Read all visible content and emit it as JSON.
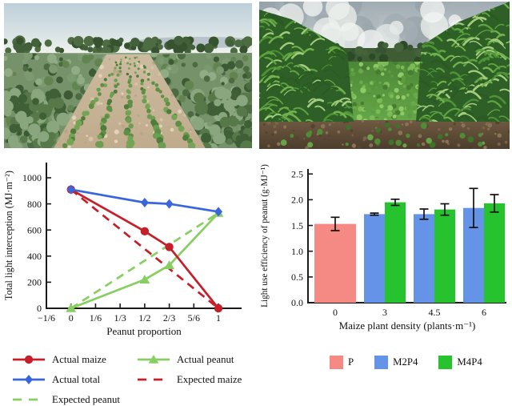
{
  "figure": {
    "kind": "composite-research-figure",
    "background": "#ffffff",
    "photos": {
      "left": {
        "name": "maize-peanut-field-early",
        "description": "young maize rows flanking peanut strips on sandy soil, tree line on horizon, hazy sky"
      },
      "right": {
        "name": "maize-peanut-field-late",
        "description": "tall maize walls on both sides of a dense peanut strip under a cloudy grey sky, dark soil foreground"
      }
    }
  },
  "chart_data": [
    {
      "type": "line",
      "title": "",
      "xlabel": "Peanut proportion",
      "ylabel": "Total light interception (MJ·m⁻²)",
      "xlim": [
        -0.1667,
        1.157
      ],
      "ylim": [
        0,
        1100
      ],
      "grid": false,
      "x_ticks": [
        {
          "value": -0.1667,
          "label": "−1/6"
        },
        {
          "value": 0,
          "label": "0"
        },
        {
          "value": 0.1667,
          "label": "1/6"
        },
        {
          "value": 0.3333,
          "label": "1/3"
        },
        {
          "value": 0.5,
          "label": "1/2"
        },
        {
          "value": 0.6667,
          "label": "2/3"
        },
        {
          "value": 0.8333,
          "label": "5/6"
        },
        {
          "value": 1,
          "label": "1"
        }
      ],
      "y_ticks": [
        {
          "value": 0,
          "label": "0"
        },
        {
          "value": 200,
          "label": "200"
        },
        {
          "value": 400,
          "label": "400"
        },
        {
          "value": 600,
          "label": "600"
        },
        {
          "value": 800,
          "label": "800"
        },
        {
          "value": 1000,
          "label": "1000"
        }
      ],
      "series": [
        {
          "name": "Expected peanut",
          "color": "#88ce62",
          "style": "dashed",
          "marker": "none",
          "points": [
            [
              0,
              0
            ],
            [
              1,
              730
            ]
          ]
        },
        {
          "name": "Expected maize",
          "color": "#c5202a",
          "style": "dashed",
          "marker": "none",
          "points": [
            [
              0,
              910
            ],
            [
              1,
              0
            ]
          ]
        },
        {
          "name": "Actual peanut",
          "color": "#88ce62",
          "style": "solid",
          "marker": "triangle",
          "points": [
            [
              0,
              0
            ],
            [
              0.5,
              220
            ],
            [
              0.6667,
              330
            ],
            [
              1,
              730
            ]
          ]
        },
        {
          "name": "Actual maize",
          "color": "#c5202a",
          "style": "solid",
          "marker": "circle",
          "points": [
            [
              0,
              910
            ],
            [
              0.5,
              590
            ],
            [
              0.6667,
              470
            ],
            [
              1,
              0
            ]
          ]
        },
        {
          "name": "Actual total",
          "color": "#3a66dd",
          "style": "solid",
          "marker": "diamond",
          "points": [
            [
              0,
              910
            ],
            [
              0.5,
              810
            ],
            [
              0.6667,
              800
            ],
            [
              1,
              740
            ]
          ]
        }
      ],
      "legend_order": [
        "Actual maize",
        "Actual peanut",
        "Actual total",
        "Expected maize",
        "Expected peanut"
      ],
      "legend_position": "below"
    },
    {
      "type": "bar",
      "title": "",
      "xlabel": "Maize plant density (plants·m⁻¹)",
      "ylabel": "Light use efficiency of peanut (g·MJ⁻¹)",
      "categories": [
        "0",
        "3",
        "4.5",
        "6"
      ],
      "ylim": [
        0,
        2.6
      ],
      "grid": false,
      "y_ticks": [
        {
          "value": 0,
          "label": "0.0"
        },
        {
          "value": 0.5,
          "label": "0.5"
        },
        {
          "value": 1,
          "label": "1.0"
        },
        {
          "value": 1.5,
          "label": "1.5"
        },
        {
          "value": 2,
          "label": "2.0"
        },
        {
          "value": 2.5,
          "label": "2.5"
        }
      ],
      "series": [
        {
          "name": "P",
          "color": "#f58a84",
          "values": [
            1.53,
            null,
            null,
            null
          ],
          "errors": [
            0.13,
            null,
            null,
            null
          ]
        },
        {
          "name": "M2P4",
          "color": "#6493e7",
          "values": [
            null,
            1.72,
            1.72,
            1.84
          ],
          "errors": [
            null,
            0.02,
            0.1,
            0.38
          ]
        },
        {
          "name": "M4P4",
          "color": "#27c32f",
          "values": [
            null,
            1.95,
            1.81,
            1.93
          ],
          "errors": [
            null,
            0.06,
            0.11,
            0.17
          ]
        }
      ],
      "error_bar_color": "#111111",
      "legend_position": "below"
    }
  ]
}
